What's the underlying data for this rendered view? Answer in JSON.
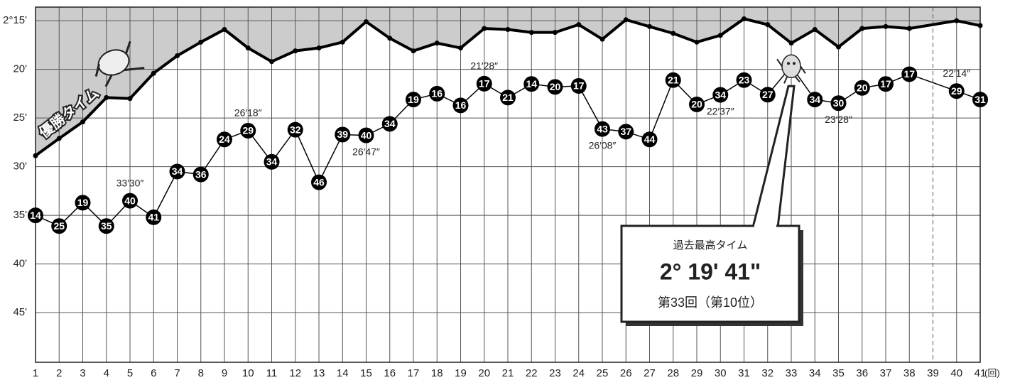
{
  "chart_data": {
    "type": "line",
    "x_unit_label": "(回)",
    "xlim": [
      1,
      41
    ],
    "xticks": [
      1,
      2,
      3,
      4,
      5,
      6,
      7,
      8,
      9,
      10,
      11,
      12,
      13,
      14,
      15,
      16,
      17,
      18,
      19,
      20,
      21,
      22,
      23,
      24,
      25,
      26,
      27,
      28,
      29,
      30,
      31,
      32,
      33,
      34,
      35,
      36,
      37,
      38,
      39,
      40,
      41
    ],
    "ylim": [
      50.1,
      13.6
    ],
    "yticks": [
      {
        "value": 15,
        "label": "2°15'"
      },
      {
        "value": 20,
        "label": "20'"
      },
      {
        "value": 25,
        "label": "25'"
      },
      {
        "value": 30,
        "label": "30'"
      },
      {
        "value": 35,
        "label": "35'"
      },
      {
        "value": 40,
        "label": "40'"
      },
      {
        "value": 45,
        "label": "45'"
      }
    ],
    "grid": true,
    "dashed_line_x": 39,
    "series": [
      {
        "name": "優勝タイム",
        "color": "#000000",
        "area_color": "#cccccc",
        "x": [
          1,
          2,
          3,
          4,
          5,
          6,
          7,
          8,
          9,
          10,
          11,
          12,
          13,
          14,
          15,
          16,
          17,
          18,
          19,
          20,
          21,
          22,
          23,
          24,
          25,
          26,
          27,
          28,
          29,
          30,
          31,
          32,
          33,
          34,
          35,
          36,
          37,
          38,
          40,
          41
        ],
        "values": [
          28.87,
          27.1,
          25.4,
          22.9,
          23.0,
          20.4,
          18.6,
          17.2,
          15.9,
          17.8,
          19.2,
          18.1,
          17.8,
          17.2,
          15.1,
          16.8,
          18.1,
          17.3,
          17.8,
          15.8,
          15.9,
          16.2,
          16.2,
          15.4,
          16.9,
          14.9,
          15.6,
          16.3,
          17.2,
          16.5,
          14.8,
          15.4,
          17.3,
          15.9,
          17.7,
          15.8,
          15.6,
          15.8,
          15.0,
          15.5
        ]
      },
      {
        "color": "#000000",
        "x": [
          1,
          2,
          3,
          4,
          5,
          6,
          7,
          8,
          9,
          10,
          11,
          12,
          13,
          14,
          15,
          16,
          17,
          18,
          19,
          20,
          21,
          22,
          23,
          24,
          25,
          26,
          27,
          28,
          29,
          30,
          31,
          32,
          33,
          34,
          35,
          36,
          37,
          38,
          40,
          41
        ],
        "values": [
          35.0,
          36.1,
          33.7,
          36.1,
          33.5,
          35.2,
          30.5,
          30.8,
          27.2,
          26.3,
          29.5,
          26.2,
          31.6,
          26.7,
          26.78,
          25.6,
          23.1,
          22.5,
          23.7,
          21.47,
          22.9,
          21.5,
          21.8,
          21.7,
          26.13,
          26.4,
          27.2,
          21.1,
          23.6,
          22.62,
          21.1,
          22.6,
          19.68,
          23.1,
          23.47,
          21.9,
          21.5,
          20.5,
          22.23,
          23.1
        ],
        "value_labels": [
          null,
          null,
          null,
          null,
          "33′30″",
          null,
          null,
          null,
          null,
          "26′18″",
          null,
          null,
          null,
          null,
          "26′47″",
          null,
          null,
          null,
          null,
          "21′28″",
          null,
          null,
          null,
          null,
          "26′08″",
          null,
          null,
          null,
          null,
          "22′37″",
          null,
          null,
          null,
          null,
          "23′28″",
          null,
          null,
          null,
          "22′14″",
          null
        ],
        "ranks": [
          14,
          25,
          19,
          35,
          40,
          41,
          34,
          36,
          24,
          29,
          34,
          32,
          46,
          39,
          40,
          34,
          19,
          16,
          16,
          17,
          21,
          14,
          20,
          17,
          43,
          37,
          44,
          21,
          20,
          34,
          23,
          27,
          null,
          34,
          30,
          20,
          17,
          17,
          29,
          31
        ]
      }
    ],
    "callout": {
      "title": "過去最高タイム",
      "time": "2° 19' 41\"",
      "note": "第33回（第10位）"
    }
  }
}
